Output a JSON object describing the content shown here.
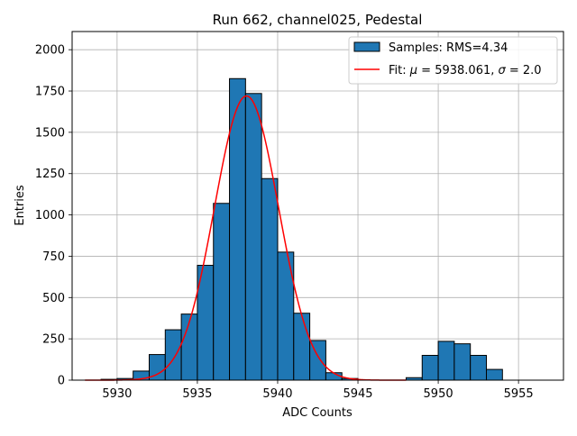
{
  "chart_data": {
    "type": "bar",
    "title": "Run 662, channel025, Pedestal",
    "xlabel": "ADC Counts",
    "ylabel": "Entries",
    "xlim": [
      5927.2,
      5957.8
    ],
    "ylim": [
      0,
      2110
    ],
    "xticks": [
      5930,
      5935,
      5940,
      5945,
      5950,
      5955
    ],
    "yticks": [
      0,
      250,
      500,
      750,
      1000,
      1250,
      1500,
      1750,
      2000
    ],
    "grid": true,
    "legend_position": "top-right",
    "colors": {
      "bars": "#1f77b4",
      "bar_edge": "#000000",
      "fit": "#ff0000",
      "grid": "#b0b0b0"
    },
    "histogram": {
      "name": "Samples: RMS=4.34",
      "bin_width": 1,
      "bins": [
        {
          "left": 5929,
          "value": 5
        },
        {
          "left": 5930,
          "value": 10
        },
        {
          "left": 5931,
          "value": 55
        },
        {
          "left": 5932,
          "value": 155
        },
        {
          "left": 5933,
          "value": 305
        },
        {
          "left": 5934,
          "value": 400
        },
        {
          "left": 5935,
          "value": 695
        },
        {
          "left": 5936,
          "value": 1070
        },
        {
          "left": 5937,
          "value": 1825
        },
        {
          "left": 5938,
          "value": 1735
        },
        {
          "left": 5939,
          "value": 1220
        },
        {
          "left": 5940,
          "value": 775
        },
        {
          "left": 5941,
          "value": 405
        },
        {
          "left": 5942,
          "value": 240
        },
        {
          "left": 5943,
          "value": 45
        },
        {
          "left": 5944,
          "value": 10
        },
        {
          "left": 5948,
          "value": 15
        },
        {
          "left": 5949,
          "value": 150
        },
        {
          "left": 5950,
          "value": 235
        },
        {
          "left": 5951,
          "value": 220
        },
        {
          "left": 5952,
          "value": 150
        },
        {
          "left": 5953,
          "value": 65
        }
      ]
    },
    "fit": {
      "name_prefix": "Fit: ",
      "mu_symbol": "μ",
      "equals_mu": " = 5938.061, ",
      "sigma_symbol": "σ",
      "equals_sigma": " = 2.0",
      "mu": 5938.061,
      "sigma": 2.0,
      "amplitude": 1720,
      "x_range": [
        5928,
        5948
      ]
    }
  }
}
